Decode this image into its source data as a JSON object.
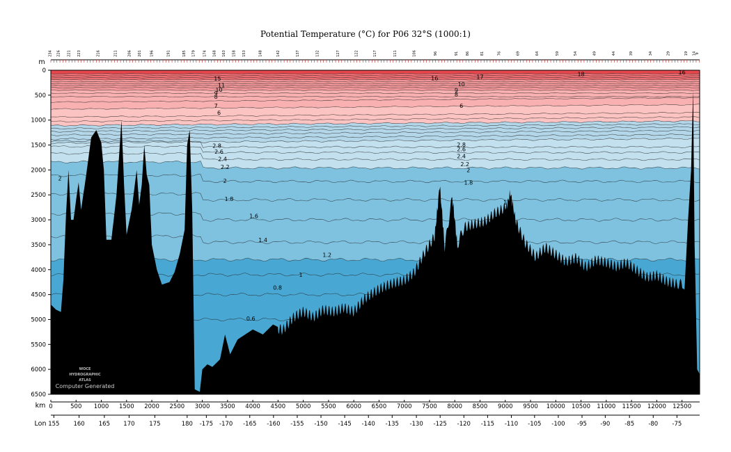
{
  "chart_data": {
    "type": "contour",
    "title": "Potential Temperature (°C) for P06 32°S (1000:1)",
    "depth_unit_label": "m",
    "distance_unit_label": "km",
    "lon_label": "Lon",
    "ylim": [
      0,
      6500
    ],
    "y_inverted": true,
    "xlim": [
      0,
      12850
    ],
    "y_ticks": [
      0,
      500,
      1000,
      1500,
      2000,
      2500,
      3000,
      3500,
      4000,
      4500,
      5000,
      5500,
      6000,
      6500
    ],
    "x_ticks": [
      0,
      500,
      1000,
      1500,
      2000,
      2500,
      3000,
      3500,
      4000,
      4500,
      5000,
      5500,
      6000,
      6500,
      7000,
      7500,
      8000,
      8500,
      9000,
      9500,
      10000,
      10500,
      11000,
      11500,
      12000,
      12500
    ],
    "lon_ticks": [
      {
        "km": 60,
        "label": "155"
      },
      {
        "km": 560,
        "label": "160"
      },
      {
        "km": 1060,
        "label": "165"
      },
      {
        "km": 1550,
        "label": "170"
      },
      {
        "km": 2060,
        "label": "175"
      },
      {
        "km": 2700,
        "label": "180"
      },
      {
        "km": 3080,
        "label": "-175"
      },
      {
        "km": 3470,
        "label": "-170"
      },
      {
        "km": 3940,
        "label": "-165"
      },
      {
        "km": 4410,
        "label": "-160"
      },
      {
        "km": 4880,
        "label": "-155"
      },
      {
        "km": 5350,
        "label": "-150"
      },
      {
        "km": 5820,
        "label": "-145"
      },
      {
        "km": 6290,
        "label": "-140"
      },
      {
        "km": 6760,
        "label": "-135"
      },
      {
        "km": 7240,
        "label": "-130"
      },
      {
        "km": 7710,
        "label": "-125"
      },
      {
        "km": 8180,
        "label": "-120"
      },
      {
        "km": 8650,
        "label": "-115"
      },
      {
        "km": 9120,
        "label": "-110"
      },
      {
        "km": 9580,
        "label": "-105"
      },
      {
        "km": 10050,
        "label": "-100"
      },
      {
        "km": 10520,
        "label": "-95"
      },
      {
        "km": 10980,
        "label": "-90"
      },
      {
        "km": 11460,
        "label": "-85"
      },
      {
        "km": 11930,
        "label": "-80"
      },
      {
        "km": 12400,
        "label": "-75"
      }
    ],
    "station_labels": [
      {
        "km": 10,
        "label": "234"
      },
      {
        "km": 170,
        "label": "226"
      },
      {
        "km": 380,
        "label": "221"
      },
      {
        "km": 580,
        "label": "223"
      },
      {
        "km": 960,
        "label": "216"
      },
      {
        "km": 1300,
        "label": "211"
      },
      {
        "km": 1580,
        "label": "206"
      },
      {
        "km": 1780,
        "label": "201"
      },
      {
        "km": 2020,
        "label": "196"
      },
      {
        "km": 2350,
        "label": "191"
      },
      {
        "km": 2660,
        "label": "185"
      },
      {
        "km": 2850,
        "label": "179"
      },
      {
        "km": 3070,
        "label": "174"
      },
      {
        "km": 3260,
        "label": "168"
      },
      {
        "km": 3450,
        "label": "163"
      },
      {
        "km": 3650,
        "label": "158"
      },
      {
        "km": 3850,
        "label": "153"
      },
      {
        "km": 4170,
        "label": "148"
      },
      {
        "km": 4520,
        "label": "142"
      },
      {
        "km": 4910,
        "label": "137"
      },
      {
        "km": 5300,
        "label": "132"
      },
      {
        "km": 5710,
        "label": "127"
      },
      {
        "km": 6070,
        "label": "122"
      },
      {
        "km": 6440,
        "label": "117"
      },
      {
        "km": 6840,
        "label": "111"
      },
      {
        "km": 7220,
        "label": "106"
      },
      {
        "km": 7640,
        "label": "96"
      },
      {
        "km": 8050,
        "label": "91"
      },
      {
        "km": 8270,
        "label": "86"
      },
      {
        "km": 8560,
        "label": "81"
      },
      {
        "km": 8900,
        "label": "76"
      },
      {
        "km": 9270,
        "label": "69"
      },
      {
        "km": 9650,
        "label": "64"
      },
      {
        "km": 10050,
        "label": "59"
      },
      {
        "km": 10410,
        "label": "54"
      },
      {
        "km": 10790,
        "label": "49"
      },
      {
        "km": 11170,
        "label": "44"
      },
      {
        "km": 11510,
        "label": "39"
      },
      {
        "km": 11900,
        "label": "34"
      },
      {
        "km": 12250,
        "label": "29"
      },
      {
        "km": 12600,
        "label": "19"
      },
      {
        "km": 12760,
        "label": "14"
      },
      {
        "km": 12820,
        "label": "9"
      }
    ],
    "isotherms": [
      {
        "value": 18,
        "base": 70
      },
      {
        "value": 17,
        "base": 110
      },
      {
        "value": 16,
        "base": 150
      },
      {
        "value": 15,
        "base": 190
      },
      {
        "value": 14,
        "base": 230
      },
      {
        "value": 13,
        "base": 270
      },
      {
        "value": 12,
        "base": 310
      },
      {
        "value": 11,
        "base": 350
      },
      {
        "value": 10,
        "base": 400
      },
      {
        "value": 9,
        "base": 460
      },
      {
        "value": 8,
        "base": 530
      },
      {
        "value": 7,
        "base": 620
      },
      {
        "value": 6,
        "base": 760
      },
      {
        "value": 5,
        "base": 920
      },
      {
        "value": 4.5,
        "base": 1010
      },
      {
        "value": 4,
        "base": 1090
      },
      {
        "value": 3.8,
        "base": 1150
      },
      {
        "value": 3.6,
        "base": 1210
      },
      {
        "value": 3.4,
        "base": 1280
      },
      {
        "value": 3.2,
        "base": 1360
      },
      {
        "value": 3,
        "base": 1440
      },
      {
        "value": 2.8,
        "base": 1540
      },
      {
        "value": 2.6,
        "base": 1650
      },
      {
        "value": 2.4,
        "base": 1790
      },
      {
        "value": 2.2,
        "base": 1960
      },
      {
        "value": 2,
        "base": 2230
      },
      {
        "value": 1.8,
        "base": 2600
      },
      {
        "value": 1.6,
        "base": 3000
      },
      {
        "value": 1.4,
        "base": 3450
      },
      {
        "value": 1.2,
        "base": 3800
      },
      {
        "value": 1,
        "base": 4100
      },
      {
        "value": 0.8,
        "base": 4500
      },
      {
        "value": 0.6,
        "base": 5000
      }
    ],
    "contour_labels": [
      {
        "text": "18",
        "km": 10500,
        "depth": 80
      },
      {
        "text": "17",
        "km": 8500,
        "depth": 130
      },
      {
        "text": "16",
        "km": 7600,
        "depth": 160
      },
      {
        "text": "16",
        "km": 12500,
        "depth": 40
      },
      {
        "text": "15",
        "km": 3300,
        "depth": 170
      },
      {
        "text": "11",
        "km": 3380,
        "depth": 300
      },
      {
        "text": "10",
        "km": 3330,
        "depth": 390
      },
      {
        "text": "9",
        "km": 3270,
        "depth": 460
      },
      {
        "text": "8",
        "km": 3270,
        "depth": 530
      },
      {
        "text": "7",
        "km": 3270,
        "depth": 710
      },
      {
        "text": "6",
        "km": 3330,
        "depth": 850
      },
      {
        "text": "2.8",
        "km": 3290,
        "depth": 1510
      },
      {
        "text": "2.6",
        "km": 3330,
        "depth": 1630
      },
      {
        "text": "2.4",
        "km": 3400,
        "depth": 1780
      },
      {
        "text": "2.2",
        "km": 3450,
        "depth": 1940
      },
      {
        "text": "2",
        "km": 3450,
        "depth": 2220
      },
      {
        "text": "1.8",
        "km": 3530,
        "depth": 2580
      },
      {
        "text": "1.6",
        "km": 4020,
        "depth": 2920
      },
      {
        "text": "1.4",
        "km": 4200,
        "depth": 3400
      },
      {
        "text": "1.2",
        "km": 5470,
        "depth": 3700
      },
      {
        "text": "1",
        "km": 4950,
        "depth": 4100
      },
      {
        "text": "0.8",
        "km": 4490,
        "depth": 4360
      },
      {
        "text": "0.6",
        "km": 3960,
        "depth": 4980
      },
      {
        "text": "2",
        "km": 180,
        "depth": 2170
      },
      {
        "text": "10",
        "km": 8130,
        "depth": 280
      },
      {
        "text": "9",
        "km": 8030,
        "depth": 400
      },
      {
        "text": "8",
        "km": 8030,
        "depth": 480
      },
      {
        "text": "6",
        "km": 8130,
        "depth": 710
      },
      {
        "text": "2.8",
        "km": 8130,
        "depth": 1490
      },
      {
        "text": "2.6",
        "km": 8130,
        "depth": 1580
      },
      {
        "text": "2.4",
        "km": 8130,
        "depth": 1720
      },
      {
        "text": "2.2",
        "km": 8200,
        "depth": 1880
      },
      {
        "text": "2",
        "km": 8270,
        "depth": 2000
      },
      {
        "text": "1.8",
        "km": 8270,
        "depth": 2250
      },
      {
        "text": "1.6",
        "km": 9050,
        "depth": 2650
      }
    ],
    "colour_bands": [
      {
        "from": 0,
        "to": 18,
        "colour": "#e8464d"
      },
      {
        "from": 18,
        "to": 15,
        "colour": "#ee6f73"
      },
      {
        "from": 15,
        "to": 10,
        "colour": "#f4999b"
      },
      {
        "from": 10,
        "to": 6,
        "colour": "#f8b0b0"
      },
      {
        "from": 6,
        "to": 4,
        "colour": "#fbc3c1"
      },
      {
        "from": 4,
        "to": 3,
        "colour": "#b3d6e8"
      },
      {
        "from": 3,
        "to": 2.2,
        "colour": "#c2e0ee"
      },
      {
        "from": 2.2,
        "to": 1.2,
        "colour": "#7ec2e0"
      },
      {
        "from": 1.2,
        "to": 0,
        "colour": "#49a8d3"
      }
    ],
    "seafloor_colour": "#000000",
    "bathymetry": [
      [
        0,
        4700
      ],
      [
        100,
        4800
      ],
      [
        200,
        4850
      ],
      [
        250,
        4200
      ],
      [
        300,
        2900
      ],
      [
        350,
        2000
      ],
      [
        400,
        3000
      ],
      [
        450,
        3000
      ],
      [
        500,
        2600
      ],
      [
        550,
        2250
      ],
      [
        600,
        2800
      ],
      [
        700,
        2100
      ],
      [
        800,
        1350
      ],
      [
        900,
        1200
      ],
      [
        1000,
        1450
      ],
      [
        1050,
        2000
      ],
      [
        1100,
        3400
      ],
      [
        1200,
        3400
      ],
      [
        1300,
        2500
      ],
      [
        1400,
        1000
      ],
      [
        1450,
        2300
      ],
      [
        1500,
        3300
      ],
      [
        1600,
        2800
      ],
      [
        1700,
        2000
      ],
      [
        1750,
        2700
      ],
      [
        1800,
        2300
      ],
      [
        1850,
        1500
      ],
      [
        1900,
        2100
      ],
      [
        1950,
        2300
      ],
      [
        2000,
        3500
      ],
      [
        2100,
        4000
      ],
      [
        2200,
        4300
      ],
      [
        2350,
        4250
      ],
      [
        2450,
        4050
      ],
      [
        2550,
        3700
      ],
      [
        2650,
        3200
      ],
      [
        2700,
        1500
      ],
      [
        2750,
        1200
      ],
      [
        2800,
        2800
      ],
      [
        2850,
        6400
      ],
      [
        2950,
        6450
      ],
      [
        3000,
        6000
      ],
      [
        3100,
        5900
      ],
      [
        3200,
        5950
      ],
      [
        3350,
        5800
      ],
      [
        3450,
        5300
      ],
      [
        3550,
        5700
      ],
      [
        3700,
        5400
      ],
      [
        3850,
        5300
      ],
      [
        4000,
        5200
      ],
      [
        4200,
        5300
      ],
      [
        4400,
        5100
      ],
      [
        4600,
        5200
      ],
      [
        4800,
        5000
      ],
      [
        5000,
        4900
      ],
      [
        5200,
        5000
      ],
      [
        5400,
        4800
      ],
      [
        5600,
        4800
      ],
      [
        5800,
        4700
      ],
      [
        6000,
        4800
      ],
      [
        6200,
        4600
      ],
      [
        6400,
        4500
      ],
      [
        6600,
        4400
      ],
      [
        6800,
        4300
      ],
      [
        7000,
        4200
      ],
      [
        7200,
        4000
      ],
      [
        7400,
        3600
      ],
      [
        7600,
        3300
      ],
      [
        7700,
        2300
      ],
      [
        7800,
        3600
      ],
      [
        7950,
        2600
      ],
      [
        8050,
        3500
      ],
      [
        8200,
        3200
      ],
      [
        8400,
        3100
      ],
      [
        8600,
        3000
      ],
      [
        8800,
        2800
      ],
      [
        9000,
        2700
      ],
      [
        9100,
        2500
      ],
      [
        9200,
        3000
      ],
      [
        9400,
        3500
      ],
      [
        9600,
        3800
      ],
      [
        9800,
        3600
      ],
      [
        10000,
        3700
      ],
      [
        10200,
        3800
      ],
      [
        10400,
        3700
      ],
      [
        10600,
        3900
      ],
      [
        10800,
        3800
      ],
      [
        11000,
        3900
      ],
      [
        11200,
        4000
      ],
      [
        11400,
        3900
      ],
      [
        11600,
        4000
      ],
      [
        11800,
        4100
      ],
      [
        12000,
        4050
      ],
      [
        12200,
        4200
      ],
      [
        12400,
        4300
      ],
      [
        12550,
        4400
      ],
      [
        12620,
        3000
      ],
      [
        12680,
        2000
      ],
      [
        12720,
        400
      ],
      [
        12750,
        3500
      ],
      [
        12800,
        6000
      ],
      [
        12850,
        6100
      ]
    ],
    "watermark": {
      "lines": [
        "WOCE",
        "HYDROGRAPHIC",
        "ATLAS"
      ],
      "caption": "Computer Generated"
    }
  }
}
